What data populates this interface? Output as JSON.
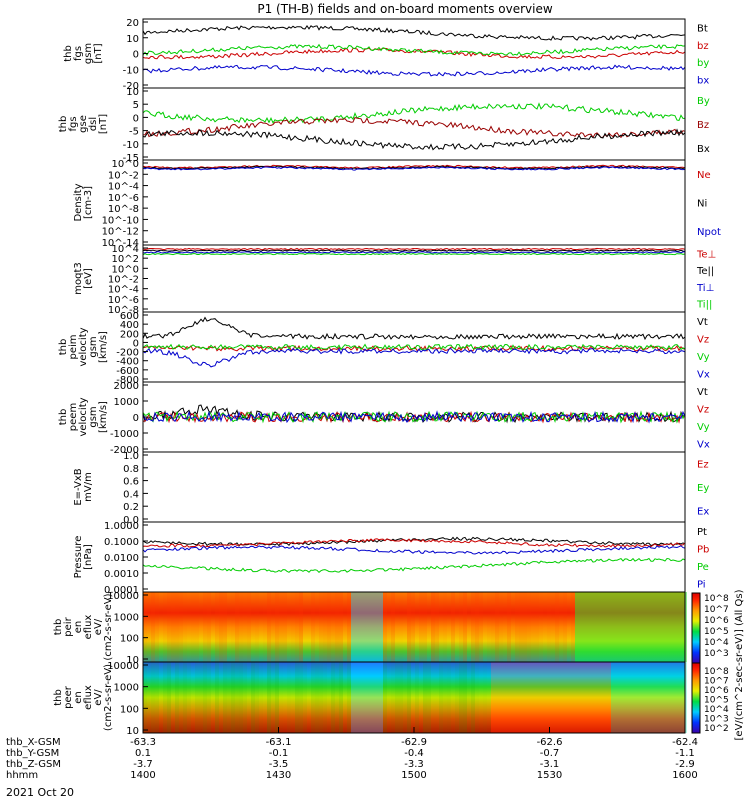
{
  "title": "P1 (TH-B) fields and on-board moments overview",
  "footer_rows": [
    {
      "label": "thb_X-GSM",
      "values": [
        "-63.3",
        "-63.1",
        "-62.9",
        "-62.6",
        "-62.4"
      ]
    },
    {
      "label": "thb_Y-GSM",
      "values": [
        "0.1",
        "-0.1",
        "-0.4",
        "-0.7",
        "-1.1"
      ]
    },
    {
      "label": "thb_Z-GSM",
      "values": [
        "-3.7",
        "-3.5",
        "-3.3",
        "-3.1",
        "-2.9"
      ]
    },
    {
      "label": "hhmm",
      "values": [
        "1400",
        "1430",
        "1500",
        "1530",
        "1600"
      ]
    }
  ],
  "date": "2021 Oct 20",
  "colorbar_label": "[eV/(cm^2-sec-sr-eV)] (All Qs)",
  "colorbar_ticks": [
    "10^8",
    "10^7",
    "10^6",
    "10^5",
    "10^4",
    "10^3"
  ],
  "colorbar_ticks2": [
    "10^8",
    "10^7",
    "10^6",
    "10^5",
    "10^4",
    "10^3",
    "10^2"
  ],
  "chart_data": [
    {
      "type": "line",
      "ylabel": "thb fgs gsm [nT]",
      "ylim": [
        -20,
        20
      ],
      "yticks": [
        "20",
        "10",
        "0",
        "-10",
        "-20"
      ],
      "series": [
        {
          "name": "Bt",
          "color": "#000000"
        },
        {
          "name": "bz",
          "color": "#cc0000"
        },
        {
          "name": "by",
          "color": "#00cc00"
        },
        {
          "name": "bx",
          "color": "#0000cc"
        }
      ]
    },
    {
      "type": "line",
      "ylabel": "thb fgs gse dsl [nT]",
      "ylim": [
        -17,
        12
      ],
      "yticks": [
        "10",
        "5",
        "0",
        "-5",
        "-10",
        "-15"
      ],
      "series": [
        {
          "name": "By",
          "color": "#00cc00"
        },
        {
          "name": "Bz",
          "color": "#990000"
        },
        {
          "name": "Bx",
          "color": "#000000"
        }
      ]
    },
    {
      "type": "line",
      "ylabel": "Density [cm-3]",
      "ylim": "log",
      "yticks": [
        "10^0",
        "10^-2",
        "10^-4",
        "10^-6",
        "10^-8",
        "10^-10",
        "10^-12",
        "10^-14"
      ],
      "series": [
        {
          "name": "Ne",
          "color": "#cc0000"
        },
        {
          "name": "Ni",
          "color": "#000000"
        },
        {
          "name": "Npot",
          "color": "#0000cc"
        }
      ]
    },
    {
      "type": "line",
      "ylabel": "moqt3 [eV]",
      "ylim": "log",
      "yticks": [
        "10^4",
        "10^2",
        "10^0",
        "10^-2",
        "10^-4",
        "10^-6",
        "10^-8"
      ],
      "series": [
        {
          "name": "Te⊥",
          "color": "#cc0000"
        },
        {
          "name": "Te||",
          "color": "#000000"
        },
        {
          "name": "Ti⊥",
          "color": "#0000cc"
        },
        {
          "name": "Ti||",
          "color": "#00cc00"
        }
      ]
    },
    {
      "type": "line",
      "ylabel": "thb peim velocity gsm [km/s]",
      "ylim": [
        -800,
        600
      ],
      "yticks": [
        "600",
        "400",
        "200",
        "0",
        "-200",
        "-400",
        "-600",
        "-800"
      ],
      "series": [
        {
          "name": "Vt",
          "color": "#000000"
        },
        {
          "name": "Vz",
          "color": "#cc0000"
        },
        {
          "name": "Vy",
          "color": "#00cc00"
        },
        {
          "name": "Vx",
          "color": "#0000cc"
        }
      ]
    },
    {
      "type": "line",
      "ylabel": "thb peem velocity gsm [km/s]",
      "ylim": [
        -2000,
        2000
      ],
      "yticks": [
        "2000",
        "1000",
        "0",
        "-1000",
        "-2000"
      ],
      "series": [
        {
          "name": "Vt",
          "color": "#000000"
        },
        {
          "name": "Vz",
          "color": "#cc0000"
        },
        {
          "name": "Vy",
          "color": "#00cc00"
        },
        {
          "name": "Vx",
          "color": "#0000cc"
        }
      ]
    },
    {
      "type": "line",
      "ylabel": "E=-VxB mV/m",
      "ylim": [
        0,
        1
      ],
      "yticks": [
        "1.0",
        "0.8",
        "0.6",
        "0.4",
        "0.2",
        "0.0"
      ],
      "series": [
        {
          "name": "Ez",
          "color": "#cc0000"
        },
        {
          "name": "Ey",
          "color": "#00cc00"
        },
        {
          "name": "Ex",
          "color": "#0000cc"
        }
      ]
    },
    {
      "type": "line",
      "ylabel": "Pressure [nPa]",
      "ylim": "log",
      "yticks": [
        "1.0000",
        "0.1000",
        "0.0100",
        "0.0010",
        "0.0001"
      ],
      "series": [
        {
          "name": "Pt",
          "color": "#000000"
        },
        {
          "name": "Pb",
          "color": "#cc0000"
        },
        {
          "name": "Pe",
          "color": "#00cc00"
        },
        {
          "name": "Pi",
          "color": "#0000cc"
        }
      ]
    },
    {
      "type": "heatmap",
      "ylabel": "thb peir en eflux eV/ (cm2-s-sr-eV)",
      "ylim": "log",
      "yticks": [
        "10000",
        "1000",
        "100",
        "10"
      ]
    },
    {
      "type": "heatmap",
      "ylabel": "thb peer en eflux eV/ (cm2-s-sr-eV)",
      "ylim": "log",
      "yticks": [
        "10000",
        "1000",
        "100",
        "10"
      ]
    }
  ]
}
